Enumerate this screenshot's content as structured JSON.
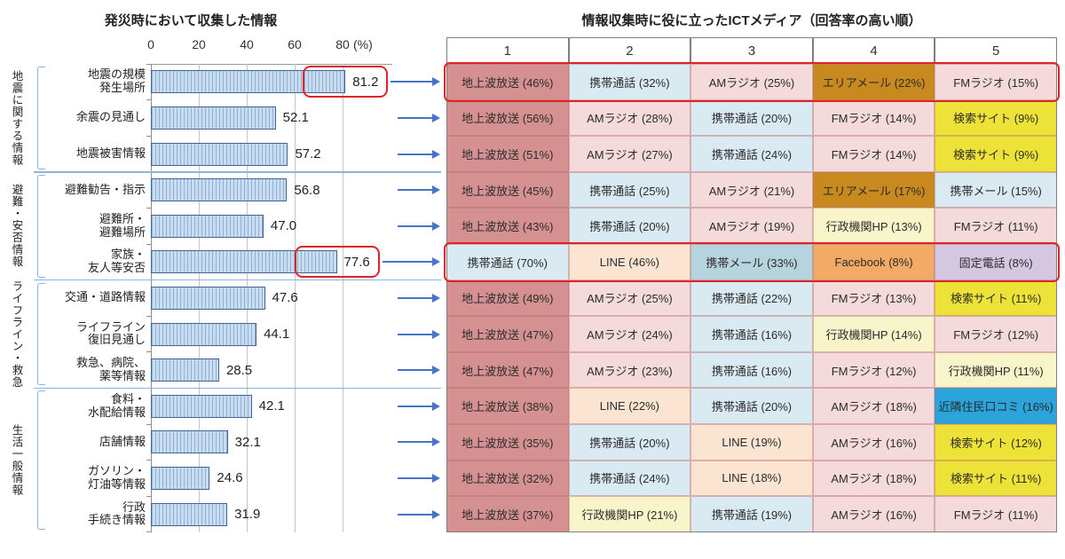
{
  "colors": {
    "terrestrial": "#d59191",
    "radio": "#f4dada",
    "mobile": "#d9eaf2",
    "mobile_mail": "#b5d4de",
    "areamail": "#c8891e",
    "search": "#ede338",
    "gov": "#f9f5cb",
    "line": "#fbe4d1",
    "facebook": "#f2aa66",
    "landline": "#d4c7df",
    "wordofmouth": "#2ba3db",
    "highlight_red": "#e02329",
    "arrow_blue": "#4575c4",
    "bracket_blue": "#8db4d9",
    "bar_fill": "#c9ddf1",
    "bar_stripe": "#8fafd6",
    "bar_border": "#46648f"
  },
  "chart_data": [
    {
      "type": "bar",
      "title": "発災時において収集した情報",
      "unit": "(%)",
      "axis_ticks": [
        0,
        20,
        40,
        60,
        80
      ],
      "xlim": [
        0,
        100
      ],
      "orientation": "horizontal",
      "categories": [
        "地震の規模\n発生場所",
        "余震の見通し",
        "地震被害情報",
        "避難勧告・指示",
        "避難所・\n避難場所",
        "家族・\n友人等安否",
        "交通・道路情報",
        "ライフライン\n復旧見通し",
        "救急、病院、\n薬等情報",
        "食料・\n水配給情報",
        "店舗情報",
        "ガソリン・\n灯油等情報",
        "行政\n手続き情報"
      ],
      "values": [
        81.2,
        52.1,
        57.2,
        56.8,
        47.0,
        77.6,
        47.6,
        44.1,
        28.5,
        42.1,
        32.1,
        24.6,
        31.9
      ],
      "highlighted_rows": [
        0,
        5
      ],
      "groups": [
        {
          "label": "地震に関する情報",
          "start": 0,
          "count": 3
        },
        {
          "label": "避難・安否情報",
          "start": 3,
          "count": 3
        },
        {
          "label": "ライフライン・救急",
          "start": 6,
          "count": 3
        },
        {
          "label": "生活一般情報",
          "start": 9,
          "count": 4
        }
      ]
    },
    {
      "type": "table",
      "title": "情報収集時に役に立ったICTメディア（回答率の高い順）",
      "columns": [
        "1",
        "2",
        "3",
        "4",
        "5"
      ],
      "highlighted_rows": [
        0,
        5
      ],
      "rows": [
        [
          {
            "text": "地上波放送 (46%)",
            "color": "terrestrial"
          },
          {
            "text": "携帯通話 (32%)",
            "color": "mobile"
          },
          {
            "text": "AMラジオ (25%)",
            "color": "radio"
          },
          {
            "text": "エリアメール (22%)",
            "color": "areamail"
          },
          {
            "text": "FMラジオ (15%)",
            "color": "radio"
          }
        ],
        [
          {
            "text": "地上波放送 (56%)",
            "color": "terrestrial"
          },
          {
            "text": "AMラジオ (28%)",
            "color": "radio"
          },
          {
            "text": "携帯通話 (20%)",
            "color": "mobile"
          },
          {
            "text": "FMラジオ (14%)",
            "color": "radio"
          },
          {
            "text": "検索サイト (9%)",
            "color": "search"
          }
        ],
        [
          {
            "text": "地上波放送 (51%)",
            "color": "terrestrial"
          },
          {
            "text": "AMラジオ (27%)",
            "color": "radio"
          },
          {
            "text": "携帯通話 (24%)",
            "color": "mobile"
          },
          {
            "text": "FMラジオ (14%)",
            "color": "radio"
          },
          {
            "text": "検索サイト (9%)",
            "color": "search"
          }
        ],
        [
          {
            "text": "地上波放送 (45%)",
            "color": "terrestrial"
          },
          {
            "text": "携帯通話 (25%)",
            "color": "mobile"
          },
          {
            "text": "AMラジオ (21%)",
            "color": "radio"
          },
          {
            "text": "エリアメール (17%)",
            "color": "areamail"
          },
          {
            "text": "携帯メール (15%)",
            "color": "mobile"
          }
        ],
        [
          {
            "text": "地上波放送 (43%)",
            "color": "terrestrial"
          },
          {
            "text": "携帯通話 (20%)",
            "color": "mobile"
          },
          {
            "text": "AMラジオ (19%)",
            "color": "radio"
          },
          {
            "text": "行政機関HP (13%)",
            "color": "gov"
          },
          {
            "text": "FMラジオ (11%)",
            "color": "radio"
          }
        ],
        [
          {
            "text": "携帯通話 (70%)",
            "color": "mobile"
          },
          {
            "text": "LINE (46%)",
            "color": "line"
          },
          {
            "text": "携帯メール (33%)",
            "color": "mobile_mail"
          },
          {
            "text": "Facebook (8%)",
            "color": "facebook"
          },
          {
            "text": "固定電話 (8%)",
            "color": "landline"
          }
        ],
        [
          {
            "text": "地上波放送 (49%)",
            "color": "terrestrial"
          },
          {
            "text": "AMラジオ (25%)",
            "color": "radio"
          },
          {
            "text": "携帯通話 (22%)",
            "color": "mobile"
          },
          {
            "text": "FMラジオ (13%)",
            "color": "radio"
          },
          {
            "text": "検索サイト (11%)",
            "color": "search"
          }
        ],
        [
          {
            "text": "地上波放送 (47%)",
            "color": "terrestrial"
          },
          {
            "text": "AMラジオ (24%)",
            "color": "radio"
          },
          {
            "text": "携帯通話 (16%)",
            "color": "mobile"
          },
          {
            "text": "行政機関HP (14%)",
            "color": "gov"
          },
          {
            "text": "FMラジオ (12%)",
            "color": "radio"
          }
        ],
        [
          {
            "text": "地上波放送 (47%)",
            "color": "terrestrial"
          },
          {
            "text": "AMラジオ (23%)",
            "color": "radio"
          },
          {
            "text": "携帯通話 (16%)",
            "color": "mobile"
          },
          {
            "text": "FMラジオ (12%)",
            "color": "radio"
          },
          {
            "text": "行政機関HP (11%)",
            "color": "gov"
          }
        ],
        [
          {
            "text": "地上波放送 (38%)",
            "color": "terrestrial"
          },
          {
            "text": "LINE (22%)",
            "color": "line"
          },
          {
            "text": "携帯通話 (20%)",
            "color": "mobile"
          },
          {
            "text": "AMラジオ (18%)",
            "color": "radio"
          },
          {
            "text": "近隣住民口コミ (16%)",
            "color": "wordofmouth"
          }
        ],
        [
          {
            "text": "地上波放送 (35%)",
            "color": "terrestrial"
          },
          {
            "text": "携帯通話 (20%)",
            "color": "mobile"
          },
          {
            "text": "LINE (19%)",
            "color": "line"
          },
          {
            "text": "AMラジオ (16%)",
            "color": "radio"
          },
          {
            "text": "検索サイト (12%)",
            "color": "search"
          }
        ],
        [
          {
            "text": "地上波放送 (32%)",
            "color": "terrestrial"
          },
          {
            "text": "携帯通話 (24%)",
            "color": "mobile"
          },
          {
            "text": "LINE (18%)",
            "color": "line"
          },
          {
            "text": "AMラジオ (18%)",
            "color": "radio"
          },
          {
            "text": "検索サイト (11%)",
            "color": "search"
          }
        ],
        [
          {
            "text": "地上波放送 (37%)",
            "color": "terrestrial"
          },
          {
            "text": "行政機関HP (21%)",
            "color": "gov"
          },
          {
            "text": "携帯通話 (19%)",
            "color": "mobile"
          },
          {
            "text": "AMラジオ (16%)",
            "color": "radio"
          },
          {
            "text": "FMラジオ (11%)",
            "color": "radio"
          }
        ]
      ]
    }
  ]
}
